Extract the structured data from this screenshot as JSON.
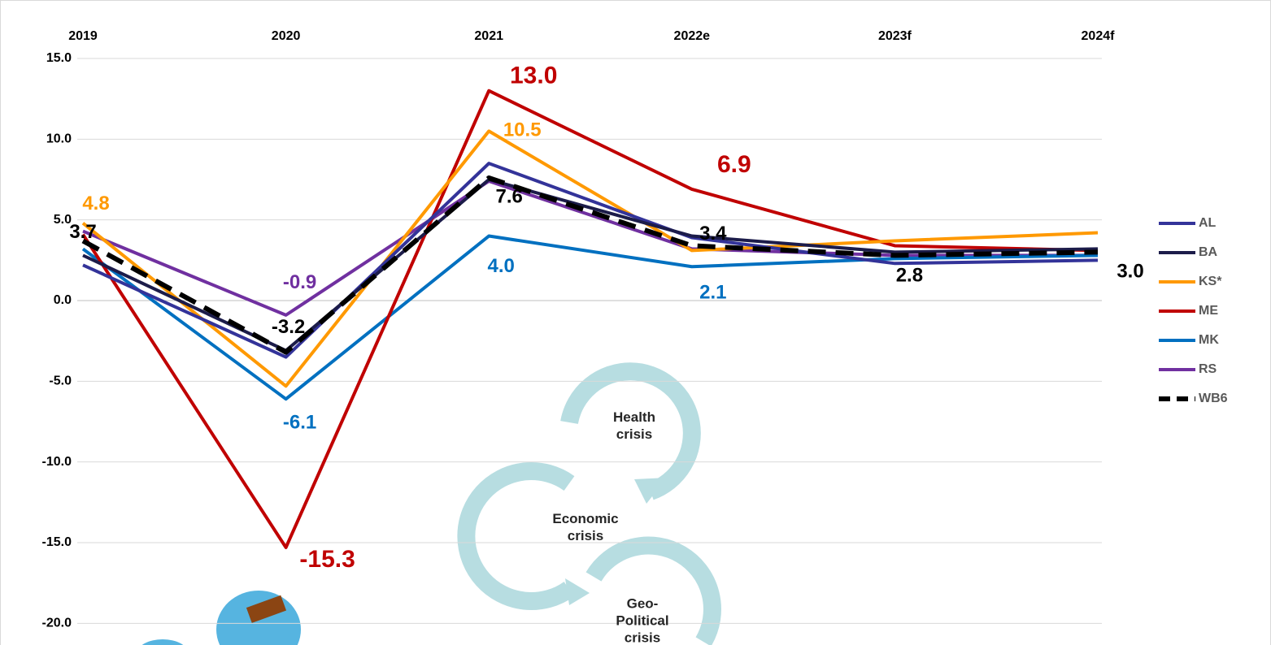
{
  "chart_data": {
    "type": "line",
    "categories": [
      "2019",
      "2020",
      "2021",
      "2022e",
      "2023f",
      "2024f"
    ],
    "ylim": [
      -21,
      15
    ],
    "yticks": [
      {
        "value": 15,
        "label": "15.0"
      },
      {
        "value": 10,
        "label": "10.0"
      },
      {
        "value": 5,
        "label": "5.0"
      },
      {
        "value": 0,
        "label": "0.0"
      },
      {
        "value": -5,
        "label": "-5.0"
      },
      {
        "value": -10,
        "label": "-10.0"
      },
      {
        "value": -15,
        "label": "-15.0"
      },
      {
        "value": -20,
        "label": "-20.0"
      }
    ],
    "grid": true,
    "legend": "right",
    "series": [
      {
        "name": "AL",
        "color": "#333399",
        "values": [
          2.2,
          -3.5,
          8.5,
          3.9,
          2.3,
          2.5
        ]
      },
      {
        "name": "BA",
        "color": "#1c1c4a",
        "values": [
          2.8,
          -3.1,
          7.5,
          4.0,
          3.0,
          3.2
        ]
      },
      {
        "name": "KS*",
        "color": "#ff9900",
        "values": [
          4.8,
          -5.3,
          10.5,
          3.1,
          3.7,
          4.2
        ],
        "value_labels": [
          "4.8",
          null,
          "10.5",
          null,
          null,
          null
        ]
      },
      {
        "name": "ME",
        "color": "#c00000",
        "values": [
          4.1,
          -15.3,
          13.0,
          6.9,
          3.4,
          3.1
        ],
        "value_labels": [
          null,
          "-15.3",
          "13.0",
          "6.9",
          null,
          null
        ]
      },
      {
        "name": "MK",
        "color": "#0070c0",
        "values": [
          3.2,
          -6.1,
          4.0,
          2.1,
          2.6,
          2.8
        ],
        "value_labels": [
          null,
          "-6.1",
          "4.0",
          "2.1",
          null,
          null
        ]
      },
      {
        "name": "RS",
        "color": "#7030a0",
        "values": [
          4.3,
          -0.9,
          7.4,
          3.2,
          2.8,
          2.8
        ],
        "value_labels": [
          null,
          "-0.9",
          null,
          null,
          null,
          null
        ]
      },
      {
        "name": "WB6",
        "color": "#000000",
        "dashed": true,
        "values": [
          3.7,
          -3.2,
          7.6,
          3.4,
          2.8,
          3.0
        ],
        "value_labels": [
          "3.7",
          "-3.2",
          "7.6",
          "3.4",
          "2.8",
          "3.0"
        ]
      }
    ],
    "annotations": [
      [
        "Health",
        "crisis"
      ],
      [
        "Economic",
        "crisis"
      ],
      [
        "Geo-",
        "Political",
        "crisis"
      ]
    ]
  }
}
